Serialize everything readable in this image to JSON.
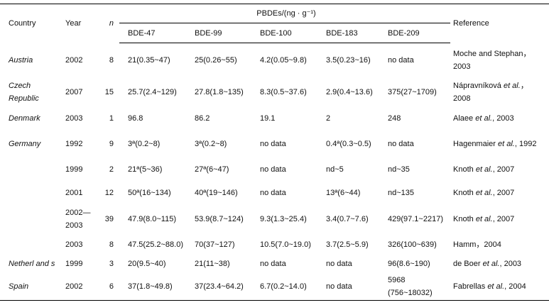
{
  "table": {
    "header": {
      "country": "Country",
      "year": "Year",
      "n": "n",
      "group": "PBDEs/(ng · g⁻¹)",
      "congeners": [
        "BDE-47",
        "BDE-99",
        "BDE-100",
        "BDE-183",
        "BDE-209"
      ],
      "reference": "Reference"
    },
    "rows": [
      {
        "country": "Austria",
        "year": "2002",
        "n": "8",
        "values": [
          "21(0.35~47)",
          "25(0.26~55)",
          "4.2(0.05~9.8)",
          "3.5(0.23~16)",
          "no data"
        ],
        "reference": "Moche and Stephan，2003"
      },
      {
        "country": "Czech Republic",
        "year": "2007",
        "n": "15",
        "values": [
          "25.7(2.4~129)",
          "27.8(1.8~135)",
          "8.3(0.5~37.6)",
          "2.9(0.4~13.6)",
          "375(27~1709)"
        ],
        "reference": [
          "Nápravníková ",
          "et al.",
          "，2008"
        ]
      },
      {
        "country": "Denmark",
        "year": "2003",
        "n": "1",
        "values": [
          "96.8",
          "86.2",
          "19.1",
          "2",
          "248"
        ],
        "reference": [
          "Alaee ",
          "et al.",
          ", 2003"
        ]
      },
      {
        "country": "Germany",
        "year": "1992",
        "n": "9",
        "values": [
          "3ª(0.2~8)",
          "3ª(0.2~8)",
          "no data",
          "0.4ª(0.3~0.5)",
          "no data"
        ],
        "reference": [
          "Hagenmaier ",
          "et al.",
          ", 1992"
        ]
      },
      {
        "country": null,
        "year": "1999",
        "n": "2",
        "values": [
          "21ª(5~36)",
          "27ª(6~47)",
          "no data",
          "nd~5",
          "nd~35"
        ],
        "reference": [
          "Knoth ",
          "et al.",
          ", 2007"
        ]
      },
      {
        "country": null,
        "year": "2001",
        "n": "12",
        "values": [
          "50ª(16~134)",
          "40ª(19~146)",
          "no data",
          "13ª(6~44)",
          "nd~135"
        ],
        "reference": [
          "Knoth ",
          "et al.",
          ", 2007"
        ]
      },
      {
        "country": null,
        "year": "2002—2003",
        "n": "39",
        "values": [
          "47.9(8.0~115)",
          "53.9(8.7~124)",
          "9.3(1.3~25.4)",
          "3.4(0.7~7.6)",
          "429(97.1~2217)"
        ],
        "reference": [
          "Knoth ",
          "et al.",
          ", 2007"
        ]
      },
      {
        "country": null,
        "year": "2003",
        "n": "8",
        "values": [
          "47.5(25.2~88.0)",
          "70(37~127)",
          "10.5(7.0~19.0)",
          "3.7(2.5~5.9)",
          "326(100~639)"
        ],
        "reference": "Hamm，2004"
      },
      {
        "country": "Netherl and s",
        "year": "1999",
        "n": "3",
        "values": [
          "20(9.5~40)",
          "21(11~38)",
          "no data",
          "no data",
          "96(8.6~190)"
        ],
        "reference": [
          "de Boer ",
          "et al.",
          ", 2003"
        ]
      },
      {
        "country": "Spain",
        "year": "2002",
        "n": "6",
        "values": [
          "37(1.8~49.8)",
          "37(23.4~64.2)",
          "6.7(0.2~14.0)",
          "no data",
          "5968 (756~18032)"
        ],
        "reference": [
          "Fabrellas ",
          "et al.",
          ", 2004"
        ]
      }
    ]
  }
}
